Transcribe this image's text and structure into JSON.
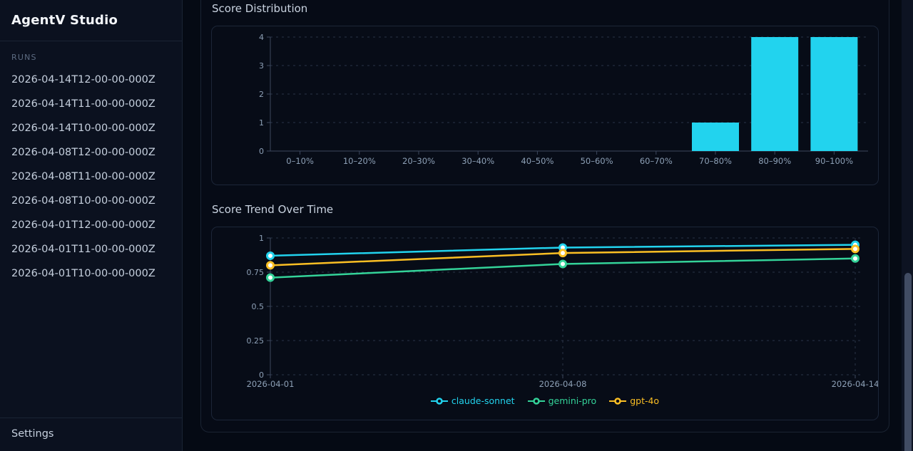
{
  "app": {
    "title": "AgentV Studio"
  },
  "sidebar": {
    "runs_label": "RUNS",
    "runs": [
      "2026-04-14T12-00-00-000Z",
      "2026-04-14T11-00-00-000Z",
      "2026-04-14T10-00-00-000Z",
      "2026-04-08T12-00-00-000Z",
      "2026-04-08T11-00-00-000Z",
      "2026-04-08T10-00-00-000Z",
      "2026-04-01T12-00-00-000Z",
      "2026-04-01T11-00-00-000Z",
      "2026-04-01T10-00-00-000Z"
    ],
    "settings_label": "Settings"
  },
  "main": {
    "distribution_title": "Score Distribution",
    "trend_title": "Score Trend Over Time"
  },
  "colors": {
    "accent_cyan": "#22d3ee",
    "accent_green": "#34d399",
    "accent_yellow": "#fbbf24",
    "grid": "#2a3447",
    "axis": "#3c475e",
    "tick_text": "#8da0b6"
  },
  "chart_data": [
    {
      "type": "bar",
      "title": "Score Distribution",
      "categories": [
        "0–10%",
        "10–20%",
        "20–30%",
        "30–40%",
        "40–50%",
        "50–60%",
        "60–70%",
        "70–80%",
        "80–90%",
        "90–100%"
      ],
      "values": [
        0,
        0,
        0,
        0,
        0,
        0,
        0,
        1,
        4,
        4
      ],
      "xlabel": "",
      "ylabel": "",
      "ylim": [
        0,
        4
      ],
      "yticks": [
        0,
        1,
        2,
        3,
        4
      ],
      "bar_color": "#22d3ee",
      "grid": "horizontal-dashed",
      "legend_position": "none"
    },
    {
      "type": "line",
      "title": "Score Trend Over Time",
      "x": [
        "2026-04-01",
        "2026-04-08",
        "2026-04-14"
      ],
      "series": [
        {
          "name": "claude-sonnet",
          "color": "#22d3ee",
          "values": [
            0.87,
            0.93,
            0.95
          ]
        },
        {
          "name": "gemini-pro",
          "color": "#34d399",
          "values": [
            0.71,
            0.81,
            0.85
          ]
        },
        {
          "name": "gpt-4o",
          "color": "#fbbf24",
          "values": [
            0.8,
            0.89,
            0.92
          ]
        }
      ],
      "ylim": [
        0,
        1
      ],
      "yticks": [
        0,
        0.25,
        0.5,
        0.75,
        1
      ],
      "grid": "dashed",
      "legend_position": "bottom",
      "marker": "circle-white-center"
    }
  ]
}
